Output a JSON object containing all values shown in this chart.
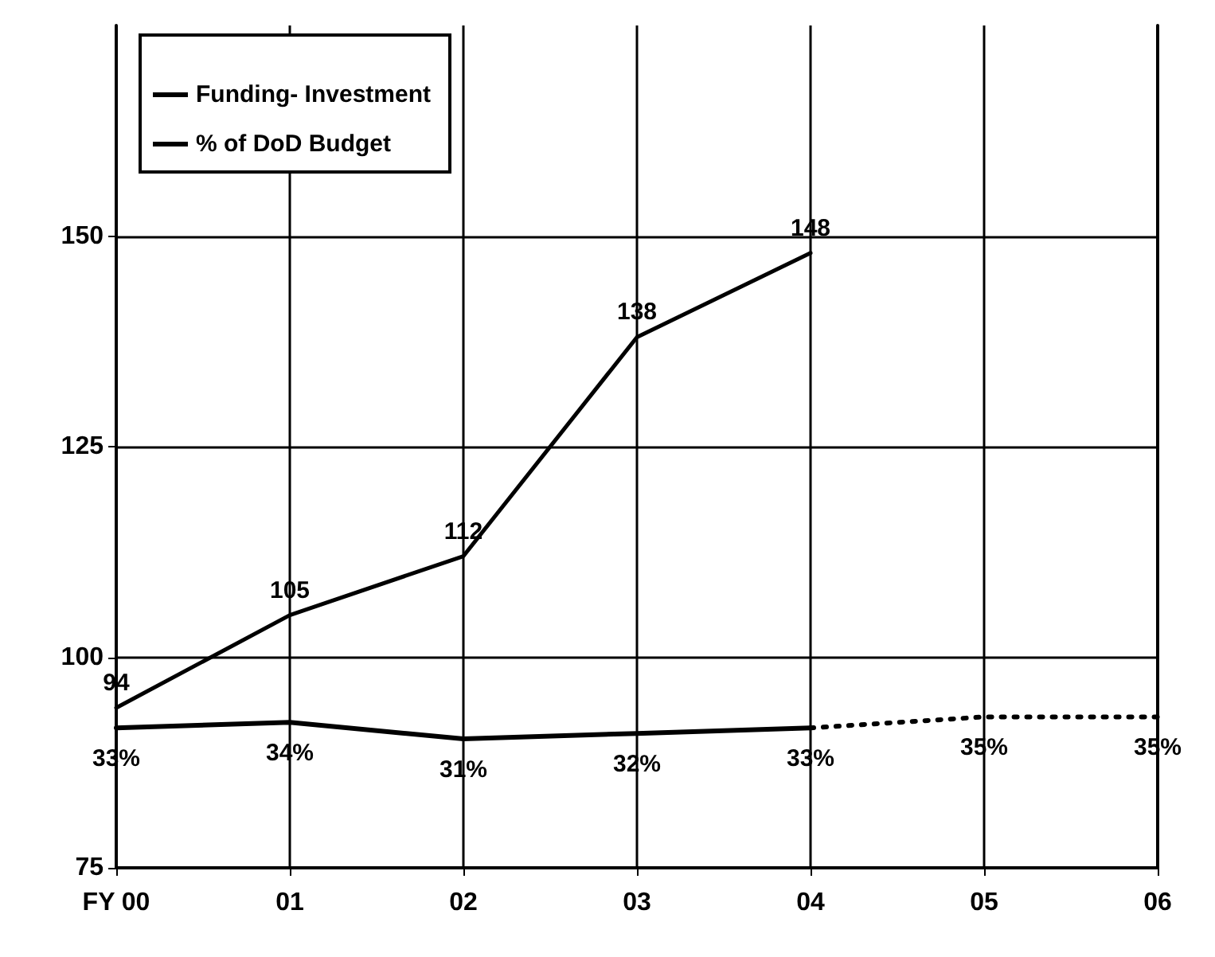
{
  "chart_data": {
    "type": "line",
    "categories": [
      "FY 00",
      "01",
      "02",
      "03",
      "04",
      "05",
      "06"
    ],
    "series": [
      {
        "name": "Funding- Investment",
        "color": "#000000",
        "values": [
          94,
          105,
          112,
          138,
          148,
          null,
          null
        ],
        "value_labels": [
          "94",
          "105",
          "112",
          "138",
          "148",
          null,
          null
        ]
      },
      {
        "name": "% of DoD Budget",
        "color": "#000000",
        "axis": "y2",
        "values": [
          33,
          34,
          31,
          32,
          33,
          null,
          null
        ],
        "value_labels": [
          "33%",
          "34%",
          "31%",
          "32%",
          "33%",
          null,
          null
        ]
      },
      {
        "color": "#000000",
        "axis": "y2",
        "line_style": "dotted",
        "values": [
          null,
          null,
          null,
          null,
          33,
          35,
          35
        ],
        "value_labels": [
          null,
          null,
          null,
          null,
          null,
          "35%",
          "35%"
        ]
      }
    ],
    "ylim": [
      75,
      175
    ],
    "yticks": [
      75,
      100,
      125,
      150
    ],
    "y2lim": [
      7.5,
      161
    ],
    "tick_labels": "xy",
    "grid": true,
    "legend": "top left",
    "marker": "none",
    "line_style": "solid"
  }
}
